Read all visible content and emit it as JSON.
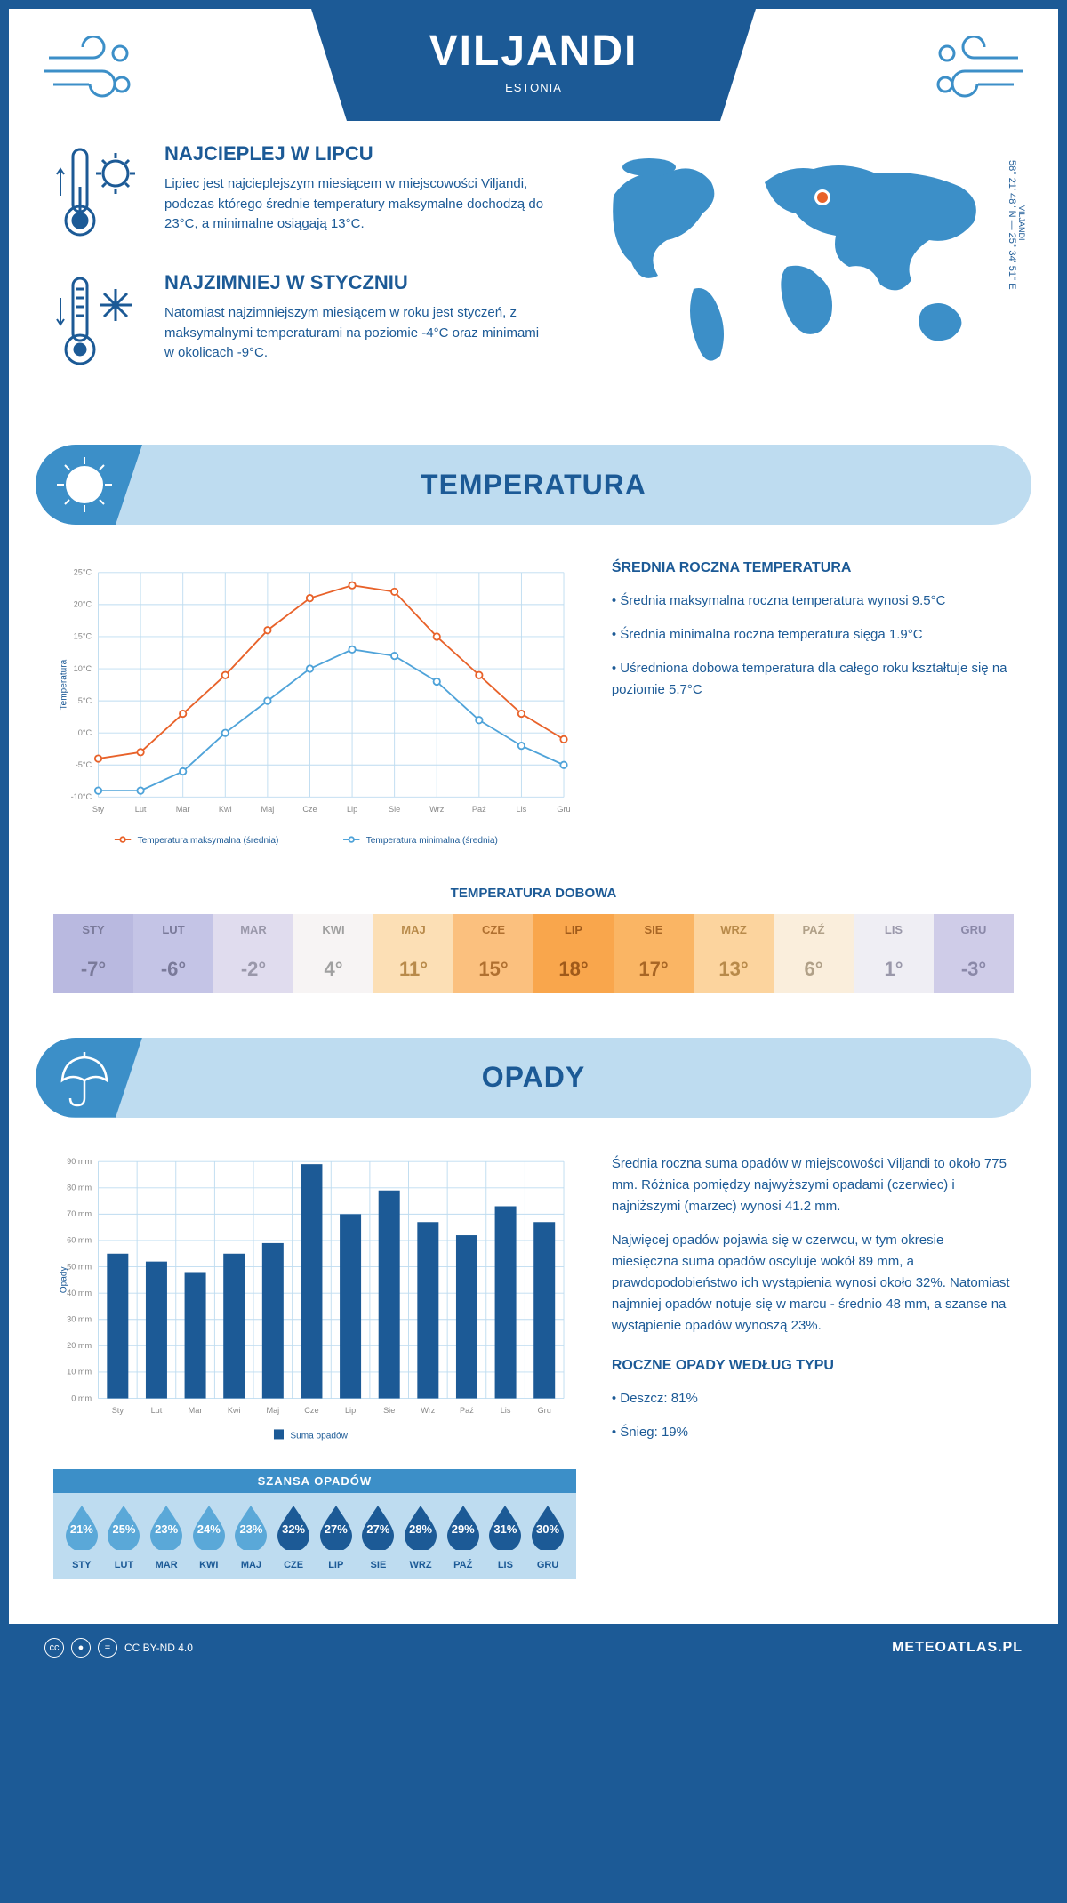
{
  "header": {
    "city": "VILJANDI",
    "country": "ESTONIA"
  },
  "coords": {
    "city": "VILJANDI",
    "text": "58° 21' 48'' N — 25° 34' 51'' E"
  },
  "facts": {
    "warm": {
      "title": "NAJCIEPLEJ W LIPCU",
      "text": "Lipiec jest najcieplejszym miesiącem w miejscowości Viljandi, podczas którego średnie temperatury maksymalne dochodzą do 23°C, a minimalne osiągają 13°C."
    },
    "cold": {
      "title": "NAJZIMNIEJ W STYCZNIU",
      "text": "Natomiast najzimniejszym miesiącem w roku jest styczeń, z maksymalnymi temperaturami na poziomie -4°C oraz minimami w okolicach -9°C."
    }
  },
  "temp_section": {
    "title": "TEMPERATURA",
    "chart": {
      "type": "line",
      "months": [
        "Sty",
        "Lut",
        "Mar",
        "Kwi",
        "Maj",
        "Cze",
        "Lip",
        "Sie",
        "Wrz",
        "Paź",
        "Lis",
        "Gru"
      ],
      "ymin": -10,
      "ymax": 25,
      "ystep": 5,
      "yunit": "°C",
      "ylabel": "Temperatura",
      "series": [
        {
          "name": "Temperatura maksymalna (średnia)",
          "color": "#e8622a",
          "values": [
            -4,
            -3,
            3,
            9,
            16,
            21,
            23,
            22,
            15,
            9,
            3,
            -1
          ]
        },
        {
          "name": "Temperatura minimalna (średnia)",
          "color": "#4fa3d9",
          "values": [
            -9,
            -9,
            -6,
            0,
            5,
            10,
            13,
            12,
            8,
            2,
            -2,
            -5
          ]
        }
      ],
      "grid_color": "#bedcf0",
      "marker": "circle",
      "line_width": 2
    },
    "summary": {
      "title": "ŚREDNIA ROCZNA TEMPERATURA",
      "bullets": [
        "Średnia maksymalna roczna temperatura wynosi 9.5°C",
        "Średnia minimalna roczna temperatura sięga 1.9°C",
        "Uśredniona dobowa temperatura dla całego roku kształtuje się na poziomie 5.7°C"
      ]
    }
  },
  "daily_temp": {
    "title": "TEMPERATURA DOBOWA",
    "months": [
      "STY",
      "LUT",
      "MAR",
      "KWI",
      "MAJ",
      "CZE",
      "LIP",
      "SIE",
      "WRZ",
      "PAŹ",
      "LIS",
      "GRU"
    ],
    "values": [
      "-7°",
      "-6°",
      "-2°",
      "4°",
      "11°",
      "15°",
      "18°",
      "17°",
      "13°",
      "6°",
      "1°",
      "-3°"
    ],
    "bg_colors": [
      "#b9b9e0",
      "#c4c4e6",
      "#e0dcee",
      "#f7f4f4",
      "#fcdfb5",
      "#fbc07e",
      "#f9a64c",
      "#fab564",
      "#fcd49e",
      "#faeedc",
      "#efeef4",
      "#cfcce8"
    ],
    "text_colors": [
      "#7a7a9a",
      "#7a7a9a",
      "#9a98aa",
      "#a0a0a0",
      "#b88a4a",
      "#b07030",
      "#a05a1a",
      "#a86625",
      "#b88a4a",
      "#b0a088",
      "#9a98aa",
      "#8a88a8"
    ]
  },
  "rain_section": {
    "title": "OPADY",
    "chart": {
      "type": "bar",
      "months": [
        "Sty",
        "Lut",
        "Mar",
        "Kwi",
        "Maj",
        "Cze",
        "Lip",
        "Sie",
        "Wrz",
        "Paź",
        "Lis",
        "Gru"
      ],
      "ymin": 0,
      "ymax": 90,
      "ystep": 10,
      "yunit": " mm",
      "ylabel": "Opady",
      "values": [
        55,
        52,
        48,
        55,
        59,
        89,
        70,
        79,
        67,
        62,
        73,
        67
      ],
      "bar_color": "#1c5a96",
      "grid_color": "#bedcf0",
      "legend": "Suma opadów"
    },
    "paras": [
      "Średnia roczna suma opadów w miejscowości Viljandi to około 775 mm. Różnica pomiędzy najwyższymi opadami (czerwiec) i najniższymi (marzec) wynosi 41.2 mm.",
      "Najwięcej opadów pojawia się w czerwcu, w tym okresie miesięczna suma opadów oscyluje wokół 89 mm, a prawdopodobieństwo ich wystąpienia wynosi około 32%. Natomiast najmniej opadów notuje się w marcu - średnio 48 mm, a szanse na wystąpienie opadów wynoszą 23%."
    ],
    "by_type": {
      "title": "ROCZNE OPADY WEDŁUG TYPU",
      "bullets": [
        "Deszcz: 81%",
        "Śnieg: 19%"
      ]
    }
  },
  "rain_chance": {
    "title": "SZANSA OPADÓW",
    "months": [
      "STY",
      "LUT",
      "MAR",
      "KWI",
      "MAJ",
      "CZE",
      "LIP",
      "SIE",
      "WRZ",
      "PAŹ",
      "LIS",
      "GRU"
    ],
    "values": [
      "21%",
      "25%",
      "23%",
      "24%",
      "23%",
      "32%",
      "27%",
      "27%",
      "28%",
      "29%",
      "31%",
      "30%"
    ],
    "light_color": "#5aa8d8",
    "dark_color": "#1c5a96",
    "dark_from": 5
  },
  "footer": {
    "license": "CC BY-ND 4.0",
    "site": "METEOATLAS.PL"
  }
}
